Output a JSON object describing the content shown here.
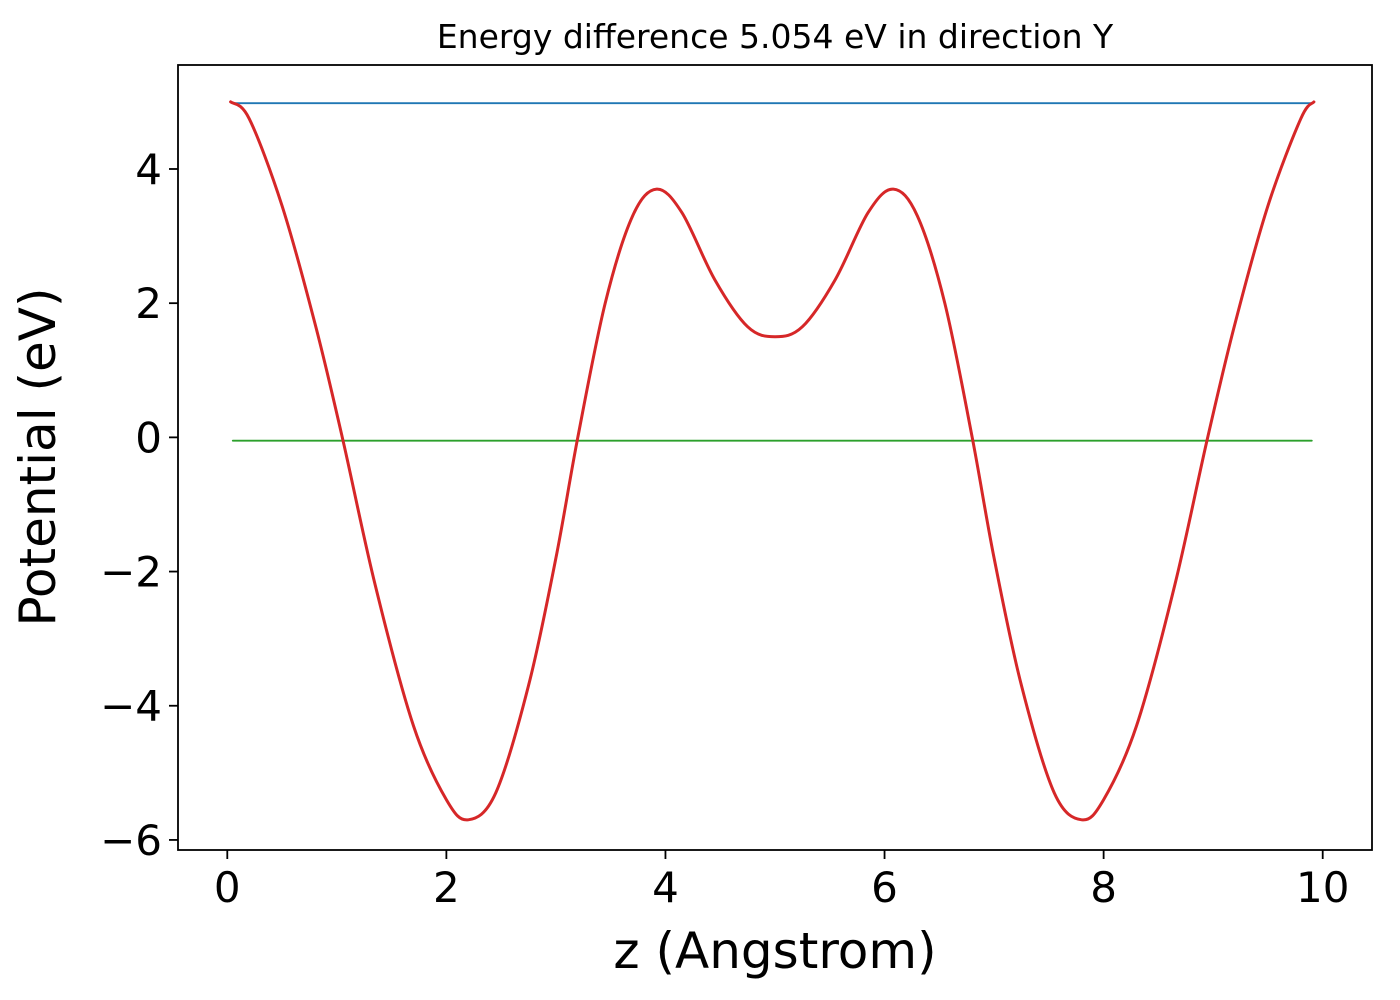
{
  "figure": {
    "background": "#ffffff",
    "spine_color": "#000000"
  },
  "chart_data": {
    "type": "line",
    "title": "Energy difference 5.054 eV in direction Y",
    "xlabel": "z (Angstrom)",
    "ylabel": "Potential (eV)",
    "xlim": [
      -0.45,
      10.45
    ],
    "ylim": [
      -6.15,
      5.55
    ],
    "x_ticks": [
      0,
      2,
      4,
      6,
      8,
      10
    ],
    "x_tick_labels": [
      "0",
      "2",
      "4",
      "6",
      "8",
      "10"
    ],
    "y_ticks": [
      -6,
      -4,
      -2,
      0,
      2,
      4
    ],
    "y_tick_labels": [
      "−6",
      "−4",
      "−2",
      "0",
      "2",
      "4"
    ],
    "grid": false,
    "legend": "none",
    "annotations": {
      "vacuum_level_eV": 5.0,
      "reference_level_eV": -0.05,
      "energy_difference_eV": 5.054,
      "direction": "Y"
    },
    "series": [
      {
        "name": "vacuum-level-line",
        "color": "#1f77b4",
        "width": 1.8,
        "smooth": false,
        "points": [
          [
            0.05,
            4.98
          ],
          [
            9.9,
            4.98
          ]
        ]
      },
      {
        "name": "reference-level-line",
        "color": "#2ca02c",
        "width": 1.8,
        "smooth": false,
        "points": [
          [
            0.05,
            -0.05
          ],
          [
            9.9,
            -0.05
          ]
        ]
      },
      {
        "name": "planar-average-potential",
        "color": "#d62728",
        "width": 3.0,
        "smooth": true,
        "points": [
          [
            0.03,
            5.0
          ],
          [
            0.2,
            4.75
          ],
          [
            0.5,
            3.45
          ],
          [
            0.8,
            1.7
          ],
          [
            1.05,
            0.0
          ],
          [
            1.35,
            -2.2
          ],
          [
            1.7,
            -4.3
          ],
          [
            2.0,
            -5.4
          ],
          [
            2.2,
            -5.7
          ],
          [
            2.45,
            -5.3
          ],
          [
            2.75,
            -3.7
          ],
          [
            3.0,
            -1.8
          ],
          [
            3.2,
            0.0
          ],
          [
            3.45,
            2.0
          ],
          [
            3.7,
            3.3
          ],
          [
            3.92,
            3.7
          ],
          [
            4.15,
            3.35
          ],
          [
            4.45,
            2.35
          ],
          [
            4.75,
            1.65
          ],
          [
            5.0,
            1.5
          ],
          [
            5.25,
            1.65
          ],
          [
            5.55,
            2.35
          ],
          [
            5.85,
            3.35
          ],
          [
            6.08,
            3.7
          ],
          [
            6.3,
            3.3
          ],
          [
            6.55,
            2.0
          ],
          [
            6.8,
            0.0
          ],
          [
            7.0,
            -1.8
          ],
          [
            7.25,
            -3.7
          ],
          [
            7.55,
            -5.3
          ],
          [
            7.8,
            -5.7
          ],
          [
            8.0,
            -5.4
          ],
          [
            8.3,
            -4.3
          ],
          [
            8.65,
            -2.2
          ],
          [
            8.95,
            0.0
          ],
          [
            9.2,
            1.7
          ],
          [
            9.5,
            3.45
          ],
          [
            9.8,
            4.75
          ],
          [
            9.92,
            5.0
          ]
        ]
      }
    ]
  }
}
